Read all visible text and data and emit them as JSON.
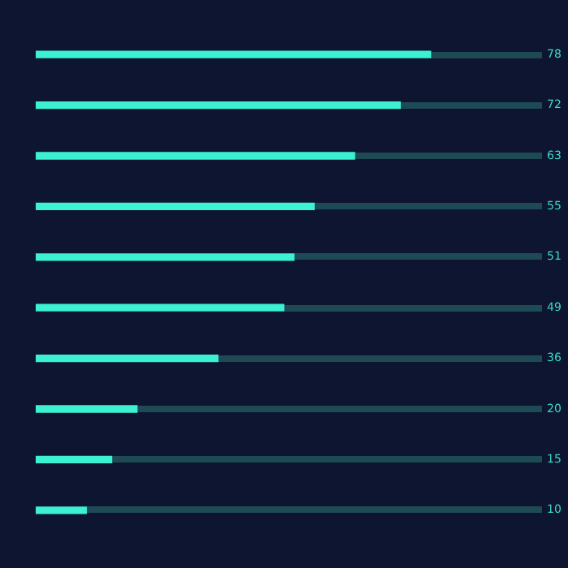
{
  "chart_data": {
    "type": "bar",
    "orientation": "horizontal",
    "categories": [
      null,
      null,
      null,
      null,
      null,
      null,
      null,
      null,
      null,
      null
    ],
    "values": [
      78,
      72,
      63,
      55,
      51,
      49,
      36,
      20,
      15,
      10
    ],
    "color": "#3cf0d2",
    "xlim": [
      0,
      100
    ],
    "data_labels": true,
    "grid": false,
    "legend": false
  }
}
